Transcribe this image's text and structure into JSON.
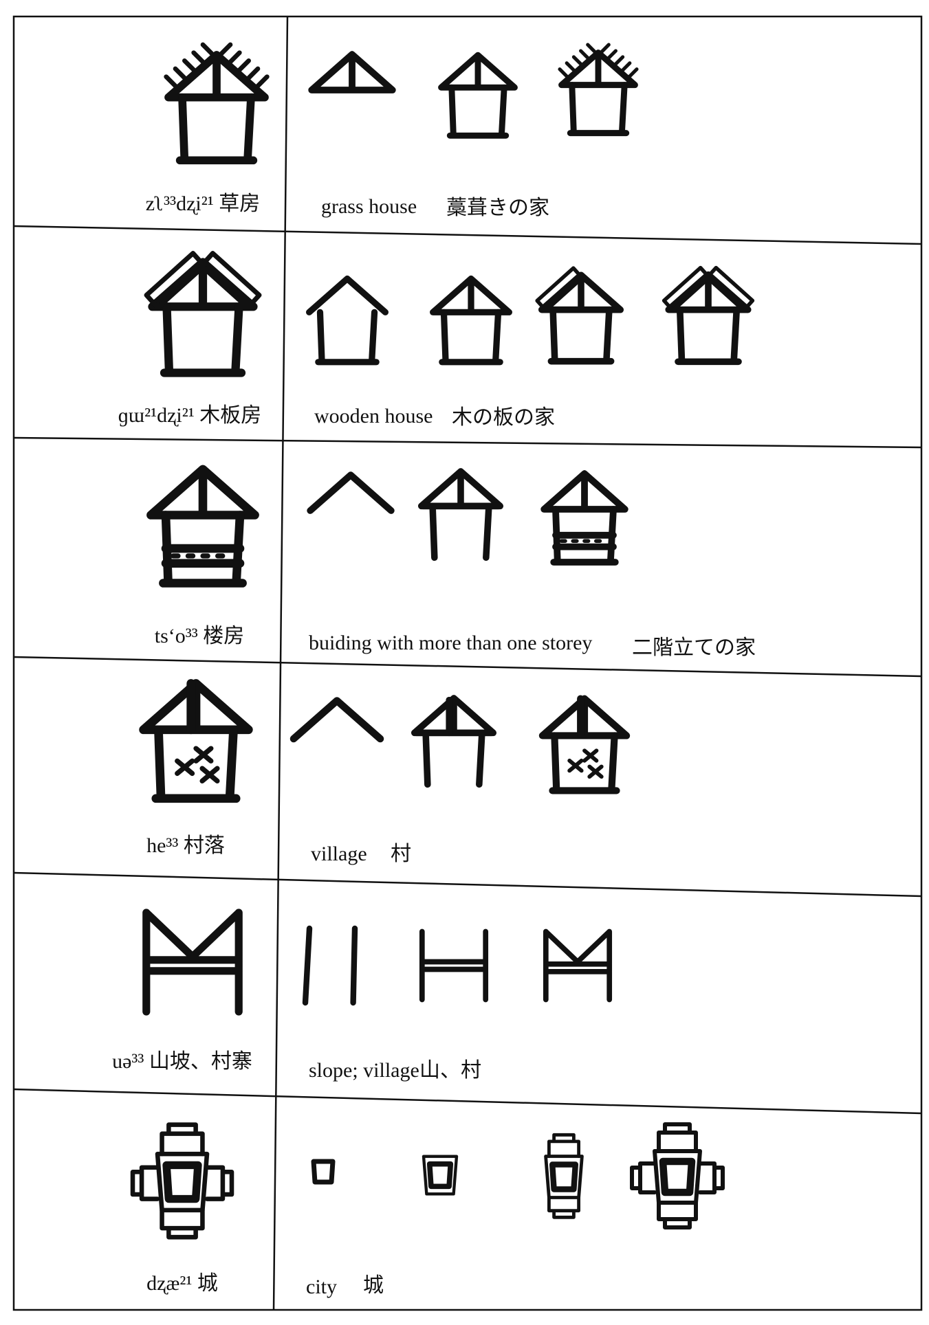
{
  "rows": [
    {
      "term": "zʅ³³dʐi²¹ 草房",
      "english": "grass house",
      "japanese": "藁葺きの家"
    },
    {
      "term": "ɡɯ²¹dʐi²¹ 木板房",
      "english": "wooden house",
      "japanese": "木の板の家"
    },
    {
      "term": "tsʻo³³ 楼房",
      "english": "buiding with more than one storey",
      "japanese": "二階立ての家"
    },
    {
      "term": "he³³ 村落",
      "english": "village",
      "japanese": "村"
    },
    {
      "term": "uə³³ 山坡、村寨",
      "english": "slope; village",
      "japanese": "山、村"
    },
    {
      "term": "dʐæ²¹ 城",
      "english": "city",
      "japanese": "城"
    }
  ]
}
